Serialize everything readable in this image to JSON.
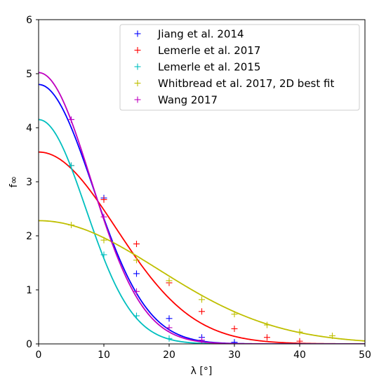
{
  "chart_data": {
    "type": "line",
    "xlabel": "λ [°]",
    "ylabel": "f∞",
    "xlim": [
      0,
      50
    ],
    "ylim": [
      0,
      6
    ],
    "xticks": [
      0,
      10,
      20,
      30,
      40,
      50
    ],
    "yticks": [
      0,
      1,
      2,
      3,
      4,
      5,
      6
    ],
    "grid": false,
    "legend_position": "top-right",
    "series": [
      {
        "name": "Jiang et al. 2014",
        "color": "#0000ff",
        "marker_x": [
          5,
          10,
          15,
          20,
          25,
          30
        ],
        "marker_y": [
          4.15,
          2.7,
          1.3,
          0.47,
          0.12,
          0.03
        ],
        "curve": {
          "amplitude": 4.8,
          "sigma": 8.3
        }
      },
      {
        "name": "Lemerle et al. 2017",
        "color": "#ff0000",
        "marker_x": [
          5,
          10,
          15,
          20,
          25,
          30,
          35,
          40
        ],
        "marker_y": [
          3.3,
          2.67,
          1.85,
          1.13,
          0.6,
          0.28,
          0.12,
          0.05
        ],
        "curve": {
          "amplitude": 3.55,
          "sigma": 11.8
        }
      },
      {
        "name": "Lemerle et al. 2015",
        "color": "#00bfbf",
        "marker_x": [
          5,
          10,
          15,
          20,
          25
        ],
        "marker_y": [
          3.3,
          1.65,
          0.52,
          0.1,
          0.01
        ],
        "curve": {
          "amplitude": 4.15,
          "sigma": 7.2
        }
      },
      {
        "name": "Whitbread et al. 2017, 2D best fit",
        "color": "#bfbf00",
        "marker_x": [
          5,
          10,
          15,
          20,
          25,
          30,
          35,
          40,
          45
        ],
        "marker_y": [
          2.2,
          1.92,
          1.55,
          1.17,
          0.82,
          0.55,
          0.35,
          0.22,
          0.15
        ],
        "curve": {
          "amplitude": 2.28,
          "sigma": 18.3
        }
      },
      {
        "name": "Wang 2017",
        "color": "#bf00bf",
        "marker_x": [
          5,
          10,
          15,
          20,
          25
        ],
        "marker_y": [
          4.15,
          2.35,
          0.97,
          0.3,
          0.07
        ],
        "curve": {
          "amplitude": 5.02,
          "sigma": 8.0
        }
      }
    ]
  }
}
